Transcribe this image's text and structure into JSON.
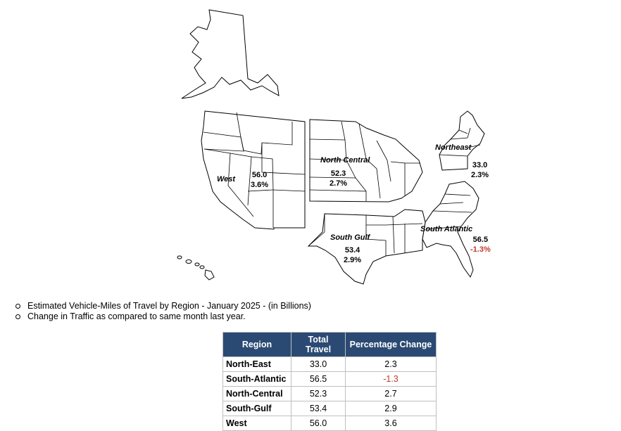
{
  "regions": [
    {
      "name": "West",
      "value": "56.0",
      "change": "3.6%"
    },
    {
      "name": "North Central",
      "value": "52.3",
      "change": "2.7%"
    },
    {
      "name": "Northeast",
      "value": "33.0",
      "change": "2.3%"
    },
    {
      "name": "South Gulf",
      "value": "53.4",
      "change": "2.9%"
    },
    {
      "name": "South Atlantic",
      "value": "56.5",
      "change": "-1.3%"
    }
  ],
  "notes": [
    "Estimated Vehicle-Miles of Travel by Region - January 2025 - (in Billions)",
    "Change in Traffic as compared to same month last year."
  ],
  "table": {
    "headers": [
      "Region",
      "Total Travel",
      "Percentage Change"
    ],
    "rows": [
      {
        "region": "North-East",
        "total": "33.0",
        "change": "2.3"
      },
      {
        "region": "South-Atlantic",
        "total": "56.5",
        "change": "-1.3"
      },
      {
        "region": "North-Central",
        "total": "52.3",
        "change": "2.7"
      },
      {
        "region": "South-Gulf",
        "total": "53.4",
        "change": "2.9"
      },
      {
        "region": "West",
        "total": "56.0",
        "change": "3.6"
      }
    ]
  },
  "colors": {
    "header_bg": "#2b4a73",
    "negative": "#c0392b"
  }
}
